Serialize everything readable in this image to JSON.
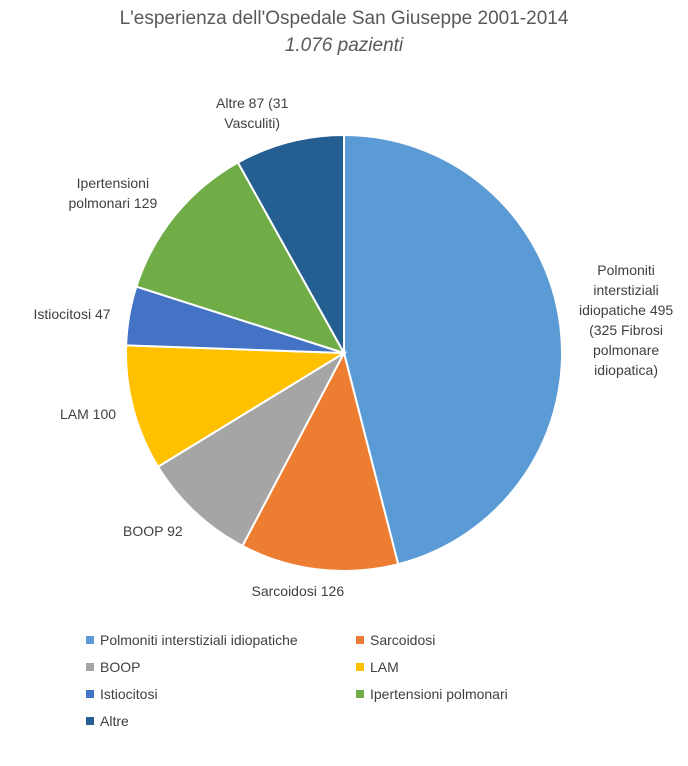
{
  "chart_data": {
    "type": "pie",
    "title": "L'esperienza dell'Ospedale San Giuseppe 2001-2014",
    "subtitle": "1.076 pazienti",
    "slices": [
      {
        "name": "Polmoniti interstiziali idiopatiche",
        "value": 495,
        "color": "#5B9BD5",
        "label": [
          "Polmoniti",
          "interstiziali",
          "idiopatiche 495",
          "(325 Fibrosi",
          "polmonare",
          "idiopatica)"
        ]
      },
      {
        "name": "Sarcoidosi",
        "value": 126,
        "color": "#ED7D31",
        "label": [
          "Sarcoidosi 126"
        ]
      },
      {
        "name": "BOOP",
        "value": 92,
        "color": "#A5A5A5",
        "label": [
          "BOOP 92"
        ]
      },
      {
        "name": "LAM",
        "value": 100,
        "color": "#FFC000",
        "label": [
          "LAM 100"
        ]
      },
      {
        "name": "Istiocitosi",
        "value": 47,
        "color": "#4472C4",
        "label": [
          "Istiocitosi 47"
        ]
      },
      {
        "name": "Ipertensioni polmonari",
        "value": 129,
        "color": "#70AD47",
        "label": [
          "Ipertensioni",
          "polmonari 129"
        ]
      },
      {
        "name": "Altre",
        "value": 87,
        "color": "#255E91",
        "label": [
          "Altre 87 (31",
          "Vasculiti)"
        ]
      }
    ],
    "legend_position": "bottom"
  }
}
